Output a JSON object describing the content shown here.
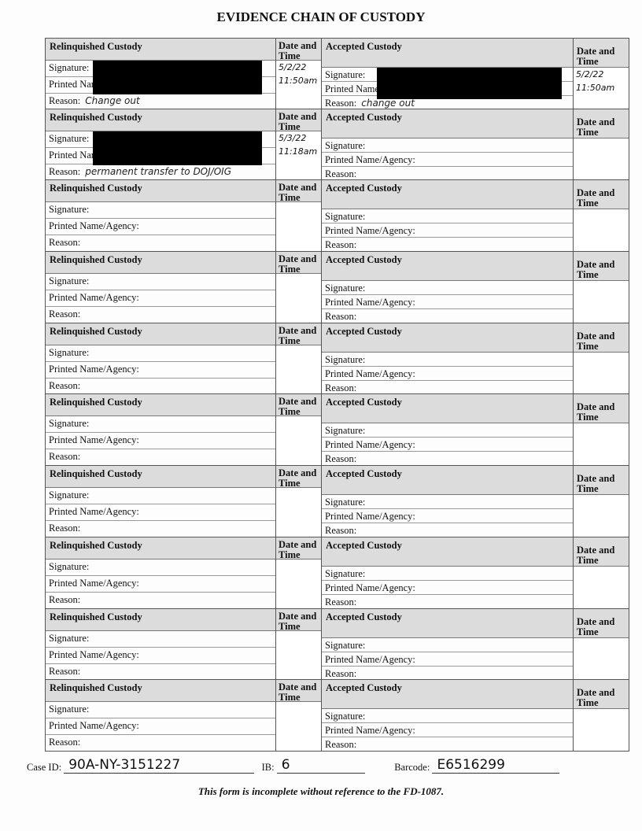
{
  "title": "EVIDENCE CHAIN OF CUSTODY",
  "labels": {
    "relinquished": "Relinquished Custody",
    "accepted": "Accepted Custody",
    "date_time": "Date and Time",
    "signature": "Signature:",
    "printed_name": "Printed Name/Agency:",
    "reason": "Reason:"
  },
  "entries": [
    {
      "relinquished": {
        "reason": "Change out",
        "date": "5/2/22",
        "time": "11:50am",
        "redacted": true
      },
      "accepted": {
        "reason": "change out",
        "date": "5/2/22",
        "time": "11:50am",
        "redacted": true
      }
    },
    {
      "relinquished": {
        "reason": "permanent transfer to DOJ/OIG",
        "date": "5/3/22",
        "time": "11:18am",
        "redacted": true
      },
      "accepted": {}
    },
    {
      "relinquished": {},
      "accepted": {}
    },
    {
      "relinquished": {},
      "accepted": {}
    },
    {
      "relinquished": {},
      "accepted": {}
    },
    {
      "relinquished": {},
      "accepted": {}
    },
    {
      "relinquished": {},
      "accepted": {}
    },
    {
      "relinquished": {},
      "accepted": {}
    },
    {
      "relinquished": {},
      "accepted": {}
    },
    {
      "relinquished": {},
      "accepted": {}
    }
  ],
  "footer": {
    "case_id_label": "Case ID:",
    "case_id": "90A-NY-3151227",
    "ib_label": "IB:",
    "ib": "6",
    "barcode_label": "Barcode:",
    "barcode": "E6516299"
  },
  "note": "This form is incomplete without reference to the FD-1087."
}
